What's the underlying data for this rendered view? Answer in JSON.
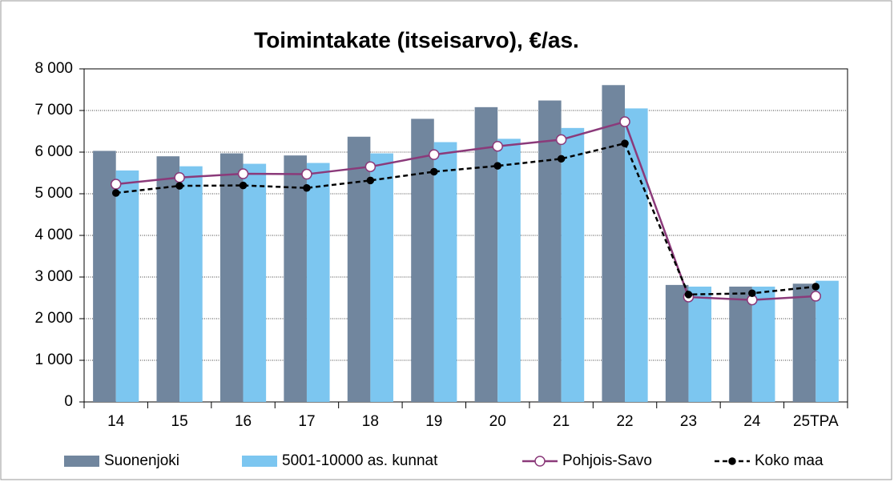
{
  "chart_data": {
    "type": "bar_line",
    "title": "Toimintakate (itseisarvo), €/as.",
    "categories": [
      "14",
      "15",
      "16",
      "17",
      "18",
      "19",
      "20",
      "21",
      "22",
      "23",
      "24",
      "25TPA"
    ],
    "series": [
      {
        "name": "Suonenjoki",
        "type": "bar",
        "color": "#71869e",
        "values": [
          6030,
          5900,
          5970,
          5920,
          6370,
          6800,
          7080,
          7240,
          7610,
          2810,
          2770,
          2840
        ]
      },
      {
        "name": "5001-10000 as. kunnat",
        "type": "bar",
        "color": "#7cc6f0",
        "values": [
          5560,
          5660,
          5720,
          5740,
          5970,
          6240,
          6320,
          6580,
          7050,
          2770,
          2770,
          2910
        ]
      },
      {
        "name": "Pohjois-Savo",
        "type": "line",
        "color": "#8b3a7a",
        "values": [
          5230,
          5390,
          5480,
          5470,
          5650,
          5940,
          6140,
          6300,
          6730,
          2520,
          2450,
          2540
        ]
      },
      {
        "name": "Koko maa",
        "type": "line",
        "color": "#000000",
        "dashed": true,
        "values": [
          5020,
          5190,
          5200,
          5140,
          5320,
          5530,
          5670,
          5840,
          6210,
          2580,
          2610,
          2770
        ]
      }
    ],
    "ylim": [
      0,
      8000
    ],
    "yticks": [
      0,
      {
        "value": 1000,
        "label": "1 000"
      },
      {
        "value": 2000,
        "label": "2 000"
      },
      {
        "value": 3000,
        "label": "3 000"
      },
      {
        "value": 4000,
        "label": "4 000"
      },
      {
        "value": 5000,
        "label": "5 000"
      },
      {
        "value": 6000,
        "label": "6 000"
      },
      {
        "value": 7000,
        "label": "7 000"
      },
      {
        "value": 8000,
        "label": "8 000"
      }
    ],
    "grid": true,
    "legend": "bottom"
  }
}
